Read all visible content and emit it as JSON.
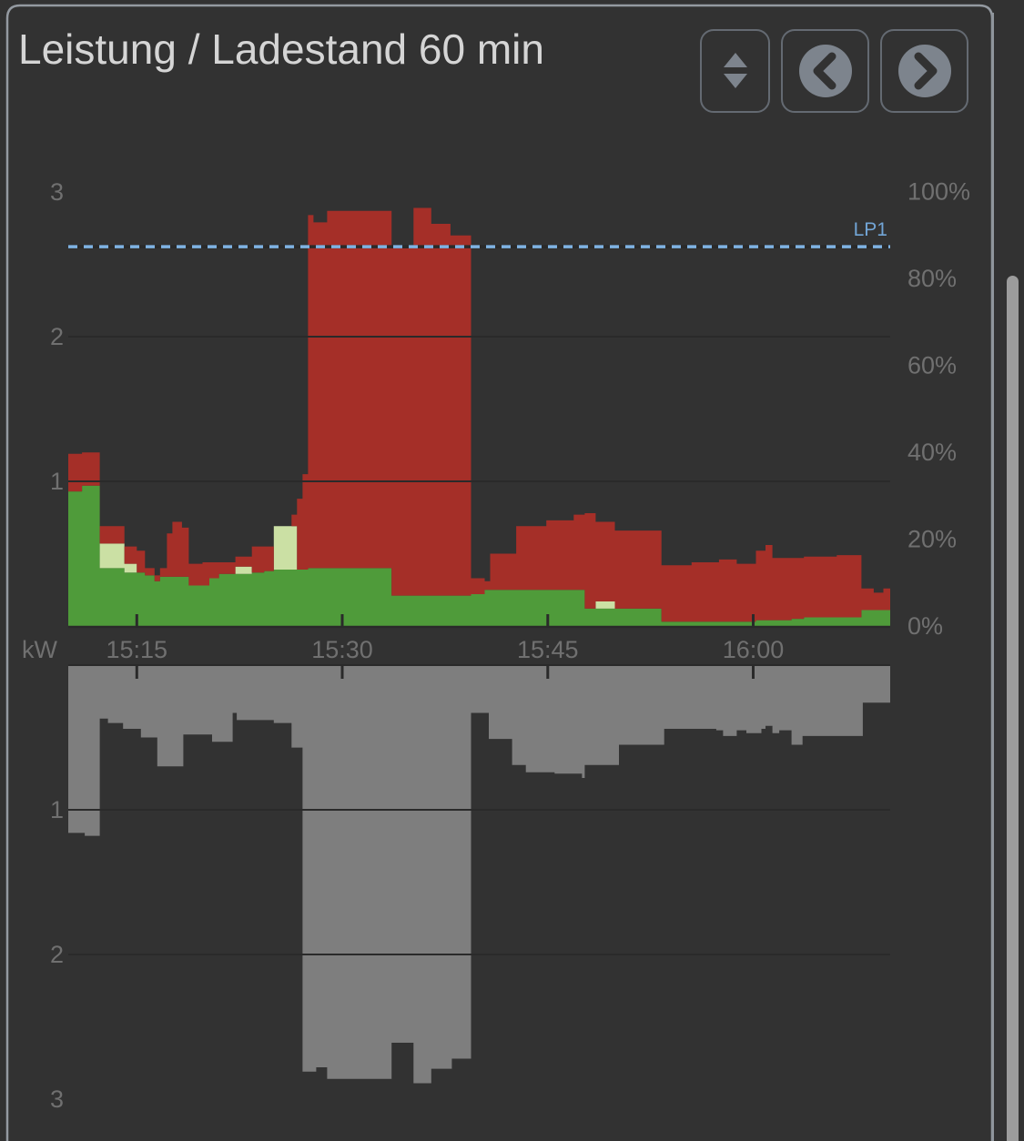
{
  "header": {
    "title": "Leistung / Ladestand 60 min"
  },
  "controls": {
    "buttons": [
      {
        "name": "resize-button",
        "icon": "up-down-arrows"
      },
      {
        "name": "previous-button",
        "icon": "chevron-left-circle"
      },
      {
        "name": "next-button",
        "icon": "chevron-right-circle"
      }
    ]
  },
  "colors": {
    "background": "#323232",
    "red_area": "#a52f28",
    "green_area": "#4f9b3a",
    "cream_area": "#cbe0a4",
    "gray_area": "#7e7e7e",
    "axis_text": "#707070",
    "title_text": "#d5d5d5",
    "soc_line": "#7fb3e3",
    "soc_label": "#72a5d6",
    "dark_line": "#2a2a2a",
    "card_border": "#949aa1",
    "button_icon": "#7d848d",
    "scrollbar": "#9c9c9c"
  },
  "chart_data": {
    "type": "area",
    "title": "Leistung / Ladestand 60 min",
    "window_minutes": 60,
    "x_axis": {
      "unit_label": "kW",
      "ticks": [
        {
          "t": 5,
          "label": "15:15"
        },
        {
          "t": 20,
          "label": "15:30"
        },
        {
          "t": 35,
          "label": "15:45"
        },
        {
          "t": 50,
          "label": "16:00"
        }
      ]
    },
    "top_chart": {
      "y_left_ticks": [
        {
          "v": 1,
          "label": "1"
        },
        {
          "v": 2,
          "label": "2"
        },
        {
          "v": 3,
          "label": "3"
        }
      ],
      "y_right_ticks": [
        {
          "v": 0,
          "label": "0%"
        },
        {
          "v": 20,
          "label": "20%"
        },
        {
          "v": 40,
          "label": "40%"
        },
        {
          "v": 60,
          "label": "60%"
        },
        {
          "v": 80,
          "label": "80%"
        },
        {
          "v": 100,
          "label": "100%"
        }
      ],
      "soc_line": {
        "label": "LP1",
        "value_pct": 87.3,
        "style": "dashed"
      },
      "series_order": [
        "green",
        "cream",
        "red"
      ],
      "breakpoints": [
        [
          0.0,
          0.93,
          0,
          0.26
        ],
        [
          1.0,
          0.97,
          0,
          0.23
        ],
        [
          2.3,
          0.4,
          0.17,
          0.12
        ],
        [
          4.1,
          0.37,
          0.06,
          0.12
        ],
        [
          5.0,
          0.37,
          0,
          0.15
        ],
        [
          5.6,
          0.35,
          0,
          0.05
        ],
        [
          6.3,
          0.31,
          0,
          0.04
        ],
        [
          6.7,
          0.34,
          0,
          0.06
        ],
        [
          7.2,
          0.34,
          0,
          0.3
        ],
        [
          7.6,
          0.34,
          0,
          0.38
        ],
        [
          8.3,
          0.34,
          0,
          0.34
        ],
        [
          8.8,
          0.28,
          0,
          0.15
        ],
        [
          9.8,
          0.28,
          0,
          0.16
        ],
        [
          10.3,
          0.33,
          0,
          0.11
        ],
        [
          11.0,
          0.36,
          0,
          0.08
        ],
        [
          12.2,
          0.36,
          0.05,
          0.07
        ],
        [
          13.4,
          0.37,
          0,
          0.18
        ],
        [
          14.3,
          0.38,
          0,
          0.17
        ],
        [
          15.0,
          0.39,
          0.3,
          0.0
        ],
        [
          16.3,
          0.39,
          0.3,
          0.08
        ],
        [
          16.7,
          0.39,
          0,
          0.49
        ],
        [
          17.1,
          0.39,
          0,
          0.66
        ],
        [
          17.5,
          0.4,
          0,
          2.44
        ],
        [
          17.9,
          0.4,
          0,
          2.39
        ],
        [
          18.9,
          0.4,
          0,
          2.47
        ],
        [
          23.6,
          0.21,
          0,
          2.4
        ],
        [
          25.2,
          0.21,
          0,
          2.68
        ],
        [
          26.5,
          0.21,
          0,
          2.57
        ],
        [
          27.9,
          0.21,
          0,
          2.49
        ],
        [
          29.4,
          0.22,
          0,
          0.11
        ],
        [
          30.4,
          0.25,
          0,
          0.06
        ],
        [
          30.8,
          0.25,
          0,
          0.25
        ],
        [
          32.7,
          0.25,
          0,
          0.44
        ],
        [
          34.9,
          0.25,
          0,
          0.48
        ],
        [
          36.9,
          0.25,
          0,
          0.52
        ],
        [
          37.7,
          0.12,
          0,
          0.66
        ],
        [
          38.5,
          0.12,
          0.05,
          0.55
        ],
        [
          39.9,
          0.12,
          0,
          0.54
        ],
        [
          43.3,
          0.03,
          0,
          0.39
        ],
        [
          45.5,
          0.03,
          0,
          0.41
        ],
        [
          47.5,
          0.03,
          0,
          0.43
        ],
        [
          48.8,
          0.03,
          0,
          0.4
        ],
        [
          50.2,
          0.04,
          0,
          0.48
        ],
        [
          50.9,
          0.04,
          0,
          0.52
        ],
        [
          51.4,
          0.04,
          0,
          0.43
        ],
        [
          52.8,
          0.05,
          0,
          0.42
        ],
        [
          53.7,
          0.06,
          0,
          0.42
        ],
        [
          56.1,
          0.06,
          0,
          0.43
        ],
        [
          57.9,
          0.11,
          0,
          0.15
        ],
        [
          58.8,
          0.11,
          0,
          0.12
        ],
        [
          59.5,
          0.11,
          0,
          0.15
        ]
      ]
    },
    "bottom_chart": {
      "y_left_ticks": [
        {
          "v": 1,
          "label": "1"
        },
        {
          "v": 2,
          "label": "2"
        },
        {
          "v": 3,
          "label": "3"
        }
      ],
      "points": [
        [
          0.0,
          -1.16
        ],
        [
          1.2,
          -1.18
        ],
        [
          2.3,
          -0.37
        ],
        [
          2.9,
          -0.4
        ],
        [
          4.0,
          -0.44
        ],
        [
          5.3,
          -0.5
        ],
        [
          6.5,
          -0.7
        ],
        [
          8.4,
          -0.48
        ],
        [
          10.5,
          -0.53
        ],
        [
          12.0,
          -0.33
        ],
        [
          12.3,
          -0.38
        ],
        [
          15.0,
          -0.4
        ],
        [
          16.3,
          -0.57
        ],
        [
          17.1,
          -2.81
        ],
        [
          18.1,
          -2.78
        ],
        [
          18.9,
          -2.86
        ],
        [
          23.6,
          -2.61
        ],
        [
          25.2,
          -2.89
        ],
        [
          26.5,
          -2.79
        ],
        [
          28.0,
          -2.72
        ],
        [
          29.4,
          -0.33
        ],
        [
          30.7,
          -0.51
        ],
        [
          32.4,
          -0.69
        ],
        [
          33.4,
          -0.74
        ],
        [
          35.5,
          -0.75
        ],
        [
          37.5,
          -0.78
        ],
        [
          37.7,
          -0.69
        ],
        [
          40.2,
          -0.55
        ],
        [
          43.5,
          -0.44
        ],
        [
          47.3,
          -0.45
        ],
        [
          47.8,
          -0.49
        ],
        [
          48.8,
          -0.45
        ],
        [
          49.5,
          -0.47
        ],
        [
          50.6,
          -0.44
        ],
        [
          50.9,
          -0.42
        ],
        [
          51.4,
          -0.47
        ],
        [
          51.9,
          -0.45
        ],
        [
          52.8,
          -0.55
        ],
        [
          53.6,
          -0.49
        ],
        [
          58.0,
          -0.26
        ]
      ]
    }
  }
}
